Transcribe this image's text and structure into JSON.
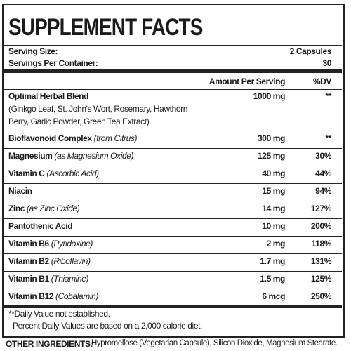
{
  "title": "SUPPLEMENT FACTS",
  "serving": [
    {
      "label": "Serving Size:",
      "value": "2 Capsules"
    },
    {
      "label": "Servings Per Container:",
      "value": "30"
    }
  ],
  "header": {
    "amount": "Amount Per Serving",
    "dv": "%DV"
  },
  "rows": [
    {
      "name": "Optimal Herbal Blend",
      "detail": [
        "(Ginkgo Leaf, St. John's Wort, Rosemary, Hawthorn",
        "Berry, Garlic Powder, Green Tea Extract)"
      ],
      "amount": "1000 mg",
      "dv": "**"
    },
    {
      "name": "Bioflavonoid Complex",
      "note": "(from Citrus)",
      "amount": "300 mg",
      "dv": "**"
    },
    {
      "name": "Magnesium",
      "note": "(as Magnesium Oxide)",
      "amount": "125 mg",
      "dv": "30%"
    },
    {
      "name": "Vitamin C",
      "note": "(Ascorbic Acid)",
      "amount": "40 mg",
      "dv": "44%"
    },
    {
      "name": "Niacin",
      "amount": "15 mg",
      "dv": "94%"
    },
    {
      "name": "Zinc",
      "note": "(as Zinc Oxide)",
      "amount": "14 mg",
      "dv": "127%"
    },
    {
      "name": "Pantothenic Acid",
      "amount": "10 mg",
      "dv": "200%"
    },
    {
      "name": "Vitamin B6",
      "note": "(Pyridoxine)",
      "amount": "2 mg",
      "dv": "118%"
    },
    {
      "name": "Vitamin B2",
      "note": "(Riboflavin)",
      "amount": "1.7 mg",
      "dv": "131%"
    },
    {
      "name": "Vitamin B1",
      "note": "(Thiamine)",
      "amount": "1.5 mg",
      "dv": "125%"
    },
    {
      "name": "Vitamin B12",
      "note": "(Cobalamin)",
      "amount": "6 mcg",
      "dv": "250%"
    }
  ],
  "footnotes": [
    "**Daily Value not established.",
    "Percent Daily Values are based on a 2,000 calorie diet."
  ],
  "other_ingredients": {
    "label": "OTHER INGREDIENTS:",
    "text": "Hypromellose (Vegetarian Capsule), Silicon Dioxide, Magnesium Stearate."
  }
}
